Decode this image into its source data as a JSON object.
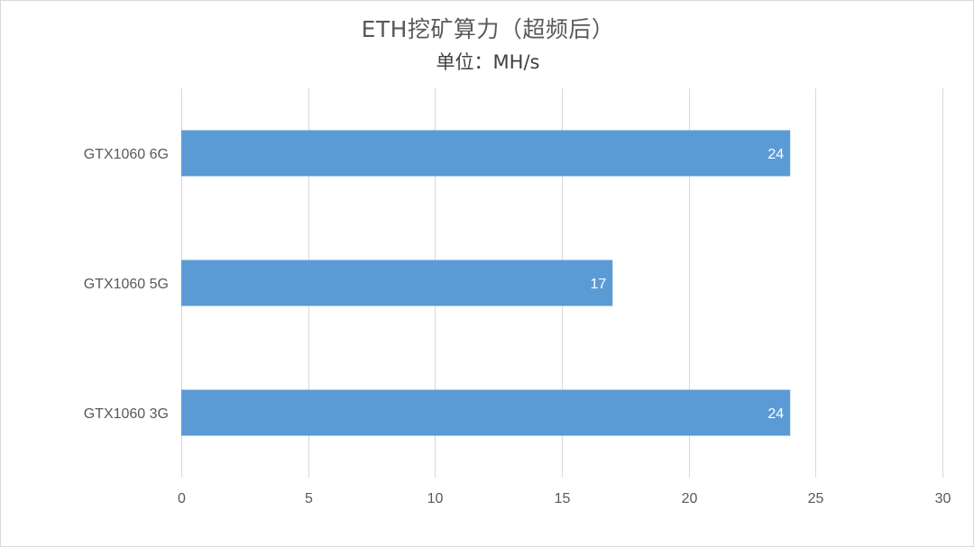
{
  "chart_data": {
    "type": "bar",
    "orientation": "horizontal",
    "title": "ETH挖矿算力（超频后）",
    "subtitle": "单位：MH/s",
    "categories": [
      "GTX1060 6G",
      "GTX1060 5G",
      "GTX1060 3G"
    ],
    "values": [
      24,
      17,
      24
    ],
    "xlim": [
      0,
      30
    ],
    "xticks": [
      0,
      5,
      10,
      15,
      20,
      25,
      30
    ],
    "grid": true,
    "data_labels": true,
    "bar_color": "#5b9bd5",
    "grid_color": "#d9d9d9"
  }
}
